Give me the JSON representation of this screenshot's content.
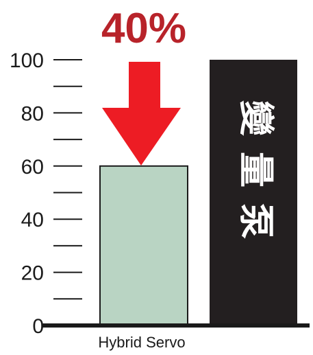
{
  "chart_data": {
    "type": "bar",
    "categories": [
      "Hybrid Servo",
      ""
    ],
    "values": [
      60,
      100
    ],
    "ylim": [
      0,
      100
    ],
    "major_ticks": [
      0,
      20,
      40,
      60,
      80,
      100
    ],
    "minor_step": 10,
    "grid": false,
    "bar_labels": [
      "",
      "變量泵"
    ],
    "annotation": {
      "text": "40%",
      "bar_index": 0
    },
    "colors": {
      "bar_hybrid_fill": "#b9d4c3",
      "bar_hybrid_stroke": "#1a1a1a",
      "bar_pump_fill": "#231f20",
      "axis": "#1a1a1a",
      "arrow": "#ed1c24",
      "annotation_text": "#b8232a",
      "bar_text": "#ffffff"
    }
  }
}
